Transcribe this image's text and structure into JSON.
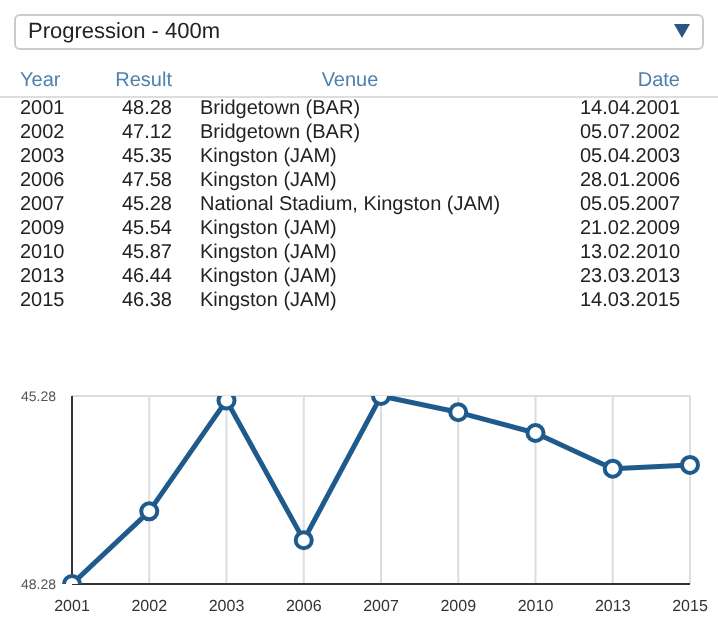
{
  "chart_data": {
    "type": "line",
    "title": "Progression - 400m",
    "categories": [
      "2001",
      "2002",
      "2003",
      "2006",
      "2007",
      "2009",
      "2010",
      "2013",
      "2015"
    ],
    "values": [
      48.28,
      47.12,
      45.35,
      47.58,
      45.28,
      45.54,
      45.87,
      46.44,
      46.38
    ],
    "color": "#1f5a8c",
    "marker": "circle",
    "grid": true,
    "ylim": [
      48.28,
      45.28
    ],
    "yticks": [
      48.28,
      45.28
    ],
    "annotations": [
      "Year",
      "Result",
      "Venue",
      "Date",
      "48.28",
      "Bridgetown (BAR)",
      "14.04.2001",
      "47.12",
      "Bridgetown (BAR)",
      "05.07.2002",
      "45.35",
      "Kingston (JAM)",
      "05.04.2003",
      "47.58",
      "Kingston (JAM)",
      "28.01.2006",
      "45.28",
      "National Stadium, Kingston (JAM)",
      "05.05.2007",
      "45.54",
      "Kingston (JAM)",
      "21.02.2009",
      "45.87",
      "Kingston (JAM)",
      "13.02.2010",
      "46.44",
      "Kingston (JAM)",
      "23.03.2013",
      "46.38",
      "Kingston (JAM)",
      "14.03.2015"
    ]
  }
}
